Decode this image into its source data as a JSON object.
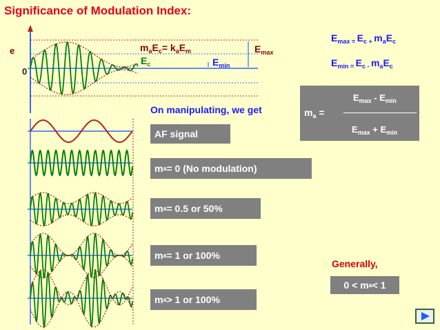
{
  "title": "Significance of Modulation Index:",
  "axis": {
    "y_label": "e",
    "origin_label": "0"
  },
  "top_diagram": {
    "mae_lbl_1": "m",
    "mae_lbl_2": "a",
    "mae_lbl_3": "E",
    "mae_lbl_4": "c",
    "mae_lbl_5": "= k",
    "mae_lbl_6": "a",
    "mae_lbl_7": "E",
    "mae_lbl_8": "m",
    "ec_1": "E",
    "ec_2": "c",
    "emin_1": "E",
    "emin_2": "min",
    "emax_1": "E",
    "emax_2": "max"
  },
  "formulas": {
    "emax": {
      "a": "E",
      "b": "max = ",
      "c": "E",
      "d": "c",
      "e": " + ",
      "f": "m",
      "g": "a",
      "h": "E",
      "i": "c"
    },
    "emin": {
      "a": "E",
      "b": "min = ",
      "c": "E",
      "d": "c",
      "e": " - ",
      "f": "m",
      "g": "a",
      "h": "E",
      "i": "c"
    }
  },
  "modulation_index_box": {
    "lhs_1": "m",
    "lhs_2": "a",
    "lhs_3": " =",
    "num": {
      "a": "E",
      "b": "max",
      "c": " - ",
      "d": "E",
      "e": "min"
    },
    "den": {
      "a": "E",
      "b": "max",
      "c": " + ",
      "d": "E",
      "e": "min"
    }
  },
  "manipulating_text": "On manipulating, we get",
  "cases": [
    {
      "label": "AF signal"
    },
    {
      "p1": "m",
      "p2": "a",
      "p3": " = 0  (No modulation)"
    },
    {
      "p1": "m",
      "p2": "a",
      "p3": " = 0.5 or 50%"
    },
    {
      "p1": "m",
      "p2": "a",
      "p3": " = 1 or 100%"
    },
    {
      "p1": "m",
      "p2": "a",
      "p3": "  > 1 or 100%"
    }
  ],
  "generally": {
    "label": "Generally,",
    "range_1": "0 < m",
    "range_2": "a",
    "range_3": " < 1"
  },
  "colors": {
    "background": "#ffffcc",
    "title": "#e6001a",
    "carrier": "#008000",
    "envelope": "#b22222",
    "axis": "#3366ff",
    "box": "#808080"
  },
  "nav_icon": "next-slide-icon"
}
